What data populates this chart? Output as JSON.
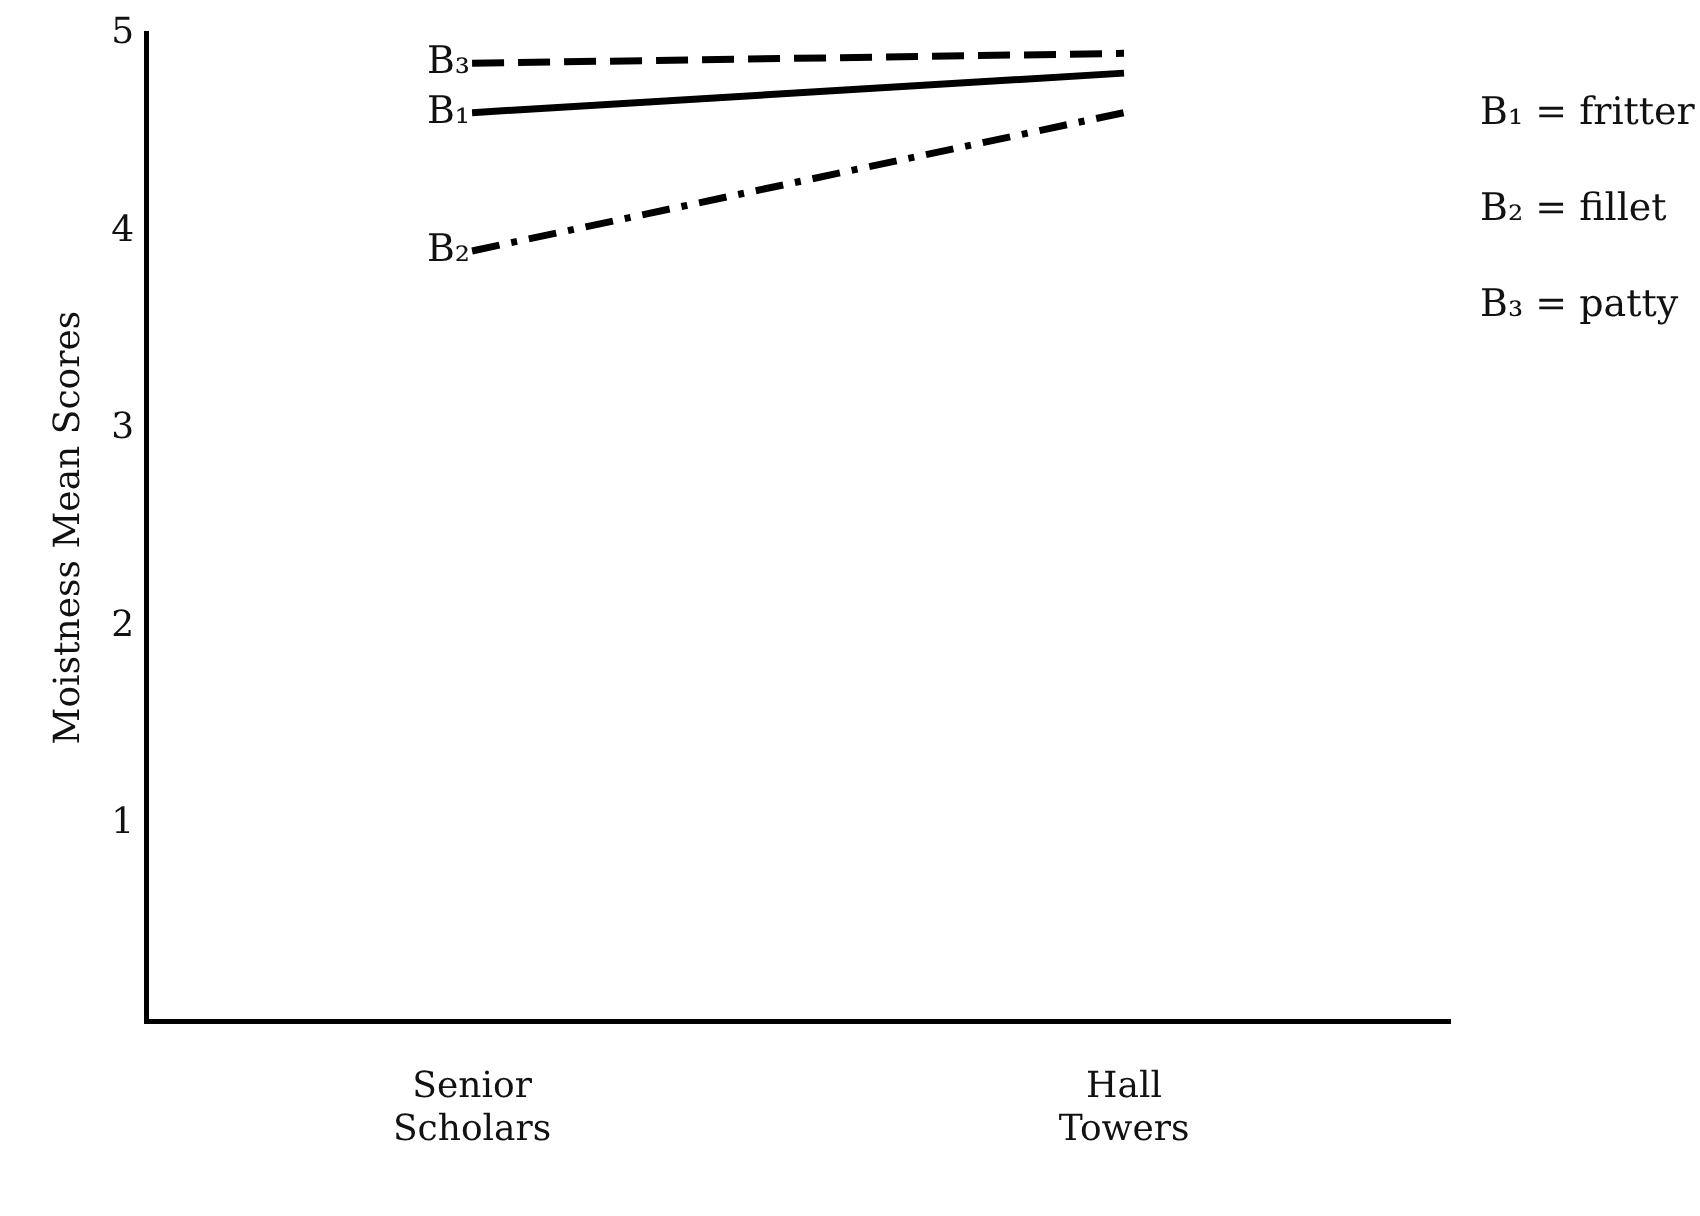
{
  "chart_data": {
    "type": "line",
    "ylabel": "Moistness Mean Scores",
    "categories": [
      "Senior\nScholars",
      "Hall\nTowers"
    ],
    "series": [
      {
        "name": "B₁",
        "color": "#000000",
        "values": [
          4.6,
          4.8
        ],
        "line_style": "solid"
      },
      {
        "name": "B₂",
        "color": "#000000",
        "values": [
          3.9,
          4.6
        ],
        "line_style": "dotted"
      },
      {
        "name": "B₃",
        "color": "#000000",
        "values": [
          4.85,
          4.9
        ],
        "line_style": "dashed"
      }
    ],
    "ylim": [
      0,
      5
    ],
    "yticks": [
      1,
      2,
      3,
      4,
      5
    ],
    "grid": false,
    "legend": false,
    "marker": "none",
    "annotations": [
      "B₁ = fritter",
      "B₂ = fillet",
      "B₃ = patty"
    ]
  }
}
